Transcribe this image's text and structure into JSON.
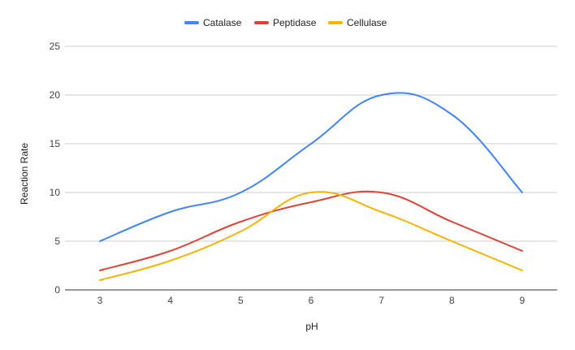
{
  "chart_data": {
    "type": "line",
    "title": "",
    "xlabel": "pH",
    "ylabel": "Reaction Rate",
    "x": [
      3,
      4,
      5,
      6,
      7,
      8,
      9
    ],
    "ylim": [
      0,
      25
    ],
    "yticks": [
      0,
      5,
      10,
      15,
      20,
      25
    ],
    "grid": true,
    "legend_position": "top",
    "smooth": true,
    "series": [
      {
        "name": "Catalase",
        "color": "#4285F4",
        "values": [
          5,
          8,
          10,
          15,
          20,
          18,
          10
        ]
      },
      {
        "name": "Peptidase",
        "color": "#DB4437",
        "values": [
          2,
          4,
          7,
          9,
          10,
          7,
          4
        ]
      },
      {
        "name": "Cellulase",
        "color": "#F4B400",
        "values": [
          1,
          3,
          6,
          10,
          8,
          5,
          2
        ]
      }
    ]
  }
}
